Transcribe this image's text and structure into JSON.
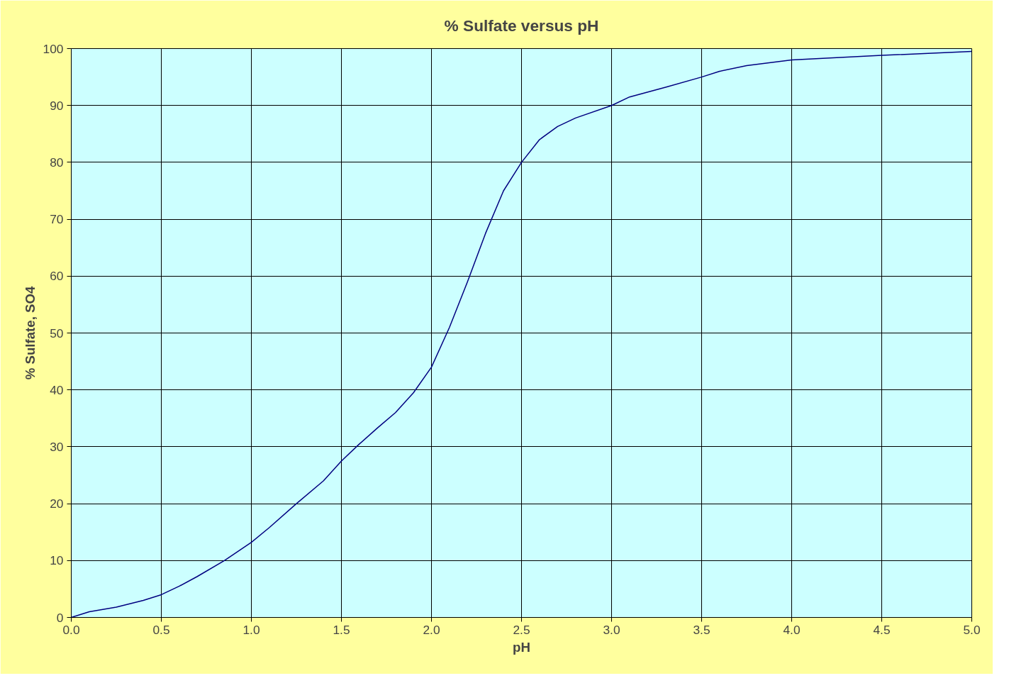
{
  "chart_data": {
    "type": "line",
    "title": "% Sulfate versus pH",
    "xlabel": "pH",
    "ylabel": "% Sulfate, SO4",
    "x": [
      0,
      0.1,
      0.25,
      0.4,
      0.5,
      0.6,
      0.7,
      0.85,
      1.0,
      1.1,
      1.25,
      1.4,
      1.5,
      1.6,
      1.7,
      1.8,
      1.9,
      2.0,
      2.1,
      2.2,
      2.3,
      2.4,
      2.5,
      2.6,
      2.7,
      2.8,
      3.0,
      3.1,
      3.3,
      3.5,
      3.6,
      3.75,
      4.0,
      4.5,
      5.0
    ],
    "series": [
      {
        "color": "#000080",
        "values": [
          0,
          1,
          1.8,
          3,
          4,
          5.5,
          7.2,
          10,
          13.2,
          15.8,
          20,
          24,
          27.5,
          30.5,
          33.3,
          36,
          39.5,
          44,
          51,
          59,
          67.5,
          75,
          80,
          84,
          86.3,
          87.8,
          90,
          91.5,
          93.2,
          95,
          96,
          97,
          98,
          98.8,
          99.5
        ]
      }
    ],
    "xlim": [
      0,
      5
    ],
    "ylim": [
      0,
      100
    ],
    "xticks": [
      {
        "value": 0,
        "label": "0.0"
      },
      0.5,
      {
        "value": 1,
        "label": "1.0"
      },
      1.5,
      {
        "value": 2,
        "label": "2.0"
      },
      2.5,
      {
        "value": 3,
        "label": "3.0"
      },
      3.5,
      {
        "value": 4,
        "label": "4.0"
      },
      4.5,
      {
        "value": 5,
        "label": "5.0"
      }
    ],
    "yticks": [
      0,
      10,
      20,
      30,
      40,
      50,
      60,
      70,
      80,
      90,
      100
    ],
    "grid": true,
    "marker": "none",
    "line_style": "solid"
  }
}
